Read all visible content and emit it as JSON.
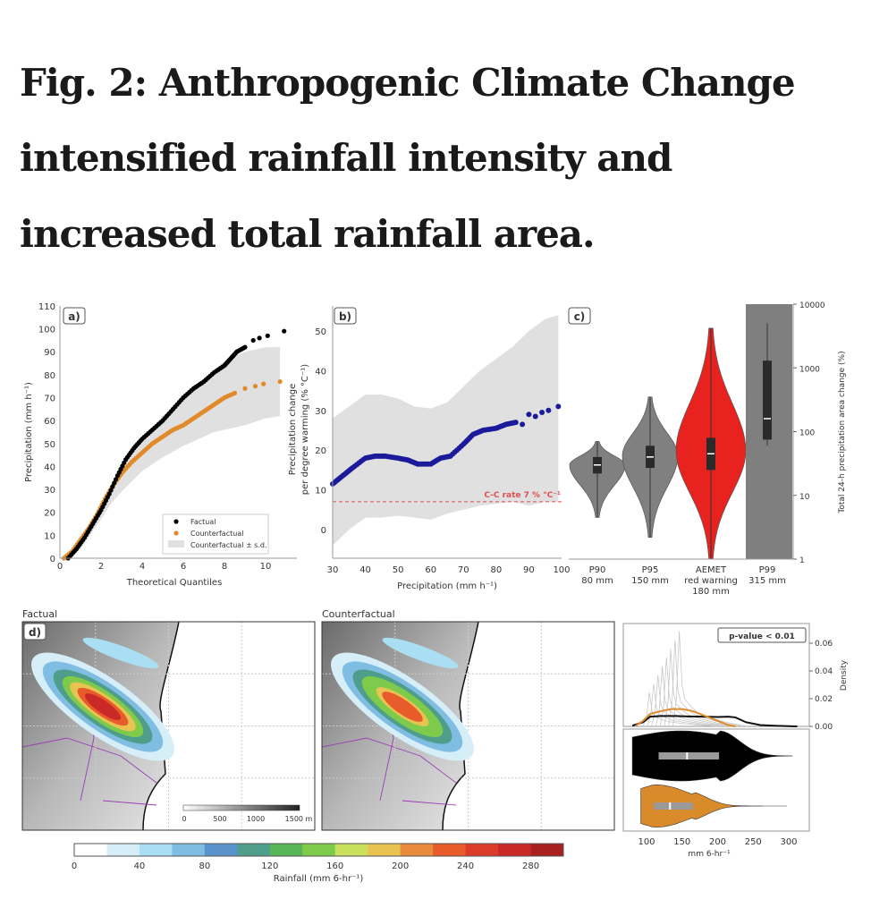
{
  "figure": {
    "title_lines": [
      "Fig. 2: Anthropogenic Climate Change",
      "intensified rainfall intensity and",
      "increased total rainfall area."
    ]
  },
  "chart_data": [
    {
      "panel": "a)",
      "type": "scatter",
      "xlabel": "Theoretical Quantiles",
      "ylabel": "Precipitation (mm h⁻¹)",
      "xlim": [
        0,
        11.3
      ],
      "ylim": [
        0,
        110
      ],
      "xticks": [
        0,
        2,
        4,
        6,
        8,
        10
      ],
      "yticks": [
        0,
        10,
        20,
        30,
        40,
        50,
        60,
        70,
        80,
        90,
        100,
        110
      ],
      "legend": {
        "position": "bottom-right",
        "entries": [
          "Factual",
          "Counterfactual",
          "Counterfactual ± s.d."
        ]
      },
      "series": [
        {
          "name": "Factual",
          "color": "#000000",
          "x": [
            0.4,
            0.8,
            1.2,
            1.6,
            2.0,
            2.4,
            2.8,
            3.2,
            3.6,
            4.0,
            4.5,
            5.0,
            5.5,
            6.0,
            6.5,
            7.0,
            7.5,
            8.0,
            8.3,
            8.6,
            9.0,
            9.4,
            9.7,
            10.1,
            10.9
          ],
          "y": [
            0,
            4,
            9,
            15,
            21,
            28,
            36,
            43,
            48,
            52,
            56,
            60,
            65,
            70,
            74,
            77,
            81,
            84,
            87,
            90,
            92,
            95,
            96,
            97,
            99
          ]
        },
        {
          "name": "Counterfactual",
          "color": "#e08a2a",
          "x": [
            0.2,
            0.6,
            1.0,
            1.4,
            1.8,
            2.2,
            2.6,
            3.0,
            3.5,
            4.0,
            4.5,
            5.0,
            5.5,
            6.0,
            6.5,
            7.0,
            7.5,
            8.0,
            8.5,
            9.0,
            9.5,
            9.9,
            10.7
          ],
          "y": [
            0,
            3,
            8,
            13,
            19,
            26,
            32,
            37,
            42,
            46,
            50,
            53,
            56,
            58,
            61,
            64,
            67,
            70,
            72,
            74,
            75,
            76,
            77
          ]
        },
        {
          "name": "Counterfactual ± s.d.",
          "color": "#e0e0e0",
          "x": [
            0,
            1,
            2,
            2.5,
            3,
            4,
            5,
            6,
            7,
            7.5,
            8,
            9,
            10,
            10.7
          ],
          "lower": [
            0,
            4,
            17,
            24,
            29,
            38,
            44,
            49,
            53,
            55,
            56,
            58,
            61,
            62
          ],
          "upper": [
            0,
            5,
            22,
            30,
            38,
            52,
            62,
            70,
            78,
            82,
            86,
            90,
            92,
            92
          ]
        }
      ]
    },
    {
      "panel": "b)",
      "type": "scatter",
      "xlabel": "Precipitation (mm h⁻¹)",
      "ylabel_lines": [
        "Precipitation change",
        "per degree warming (% °C⁻¹)"
      ],
      "xlim": [
        30,
        100
      ],
      "ylim": [
        -7,
        55
      ],
      "xticks": [
        30,
        40,
        50,
        60,
        70,
        80,
        90,
        100
      ],
      "yticks": [
        0,
        10,
        20,
        30,
        40,
        50
      ],
      "annotation": "C-C rate 7 % °C⁻¹",
      "reference_line": 7,
      "series": [
        {
          "name": "change",
          "color": "#1a1a9a",
          "x": [
            30,
            33,
            36,
            40,
            43,
            46,
            50,
            53,
            56,
            60,
            63,
            66,
            70,
            73,
            76,
            80,
            83,
            86,
            88,
            90,
            92,
            94,
            96,
            99
          ],
          "y": [
            11.5,
            13.5,
            15.5,
            18,
            18.5,
            18.5,
            18,
            17.5,
            16.5,
            16.5,
            18,
            18.5,
            21.5,
            24,
            25,
            25.5,
            26.5,
            27,
            26.5,
            29,
            28.5,
            29.5,
            30,
            31
          ]
        },
        {
          "name": "band",
          "color": "#e0e0e0",
          "x": [
            30,
            35,
            40,
            45,
            50,
            55,
            60,
            65,
            70,
            75,
            80,
            85,
            90,
            95,
            99
          ],
          "lower": [
            -4,
            0,
            3,
            3,
            3.5,
            3,
            2.5,
            4,
            5,
            6,
            6.5,
            7,
            6,
            7,
            7
          ],
          "upper": [
            28,
            31,
            34,
            34,
            33,
            31,
            30.5,
            32,
            36,
            40,
            43,
            46,
            50,
            53,
            54
          ]
        }
      ]
    },
    {
      "panel": "c)",
      "type": "violin",
      "ylabel": "Total 24-h precipitation area change (%)",
      "yscale": "log",
      "ylim": [
        1,
        10000
      ],
      "yticks": [
        "1",
        "10",
        "100",
        "1000",
        "10000"
      ],
      "categories": [
        {
          "lines": [
            "P90",
            "80 mm"
          ],
          "color": "#808080",
          "min": 4.5,
          "q1": 22,
          "median": 30,
          "q3": 40,
          "max": 70,
          "mode": 30
        },
        {
          "lines": [
            "P95",
            "150 mm"
          ],
          "color": "#808080",
          "min": 2.2,
          "q1": 27,
          "median": 40,
          "q3": 60,
          "max": 350,
          "mode": 42
        },
        {
          "lines": [
            "AEMET",
            "red warning",
            "180 mm"
          ],
          "color": "#e8231f",
          "min": 1,
          "q1": 25,
          "median": 45,
          "q3": 80,
          "max": 4200,
          "mode": 50
        },
        {
          "lines": [
            "P99",
            "315 mm"
          ],
          "color": "#7f7f7f",
          "min": 60,
          "q1": 75,
          "median": 160,
          "q3": 1300,
          "max": 5000,
          "full_bar": true
        }
      ]
    },
    {
      "panel": "d)",
      "type": "heatmap",
      "map_titles": [
        "Factual",
        "Counterfactual"
      ],
      "colorbar": {
        "label": "Rainfall (mm 6-hr⁻¹)",
        "ticks": [
          "0",
          "40",
          "80",
          "120",
          "160",
          "200",
          "240",
          "280"
        ],
        "range": [
          0,
          300
        ],
        "step": 20,
        "colors": [
          "#ffffff",
          "#d6eef8",
          "#aadff3",
          "#7fbde3",
          "#5a93cc",
          "#4f9e8c",
          "#58b658",
          "#7ecb4c",
          "#c9e05c",
          "#e8c352",
          "#e98b3c",
          "#e85c2b",
          "#da3b2a",
          "#c92a28",
          "#a82020"
        ]
      },
      "elevation_scale": {
        "ticks": [
          "0",
          "500",
          "1000",
          "1500 m"
        ]
      },
      "maxima": {
        "Factual": 280,
        "Counterfactual": 230
      }
    },
    {
      "panel": "d-right",
      "type": "area",
      "annotation": "p-value < 0.01",
      "xlabel": "mm 6-hr⁻¹",
      "ylabel": "Density",
      "xlim": [
        80,
        320
      ],
      "ylim": [
        0,
        0.075
      ],
      "xticks": [
        100,
        150,
        200,
        250,
        300
      ],
      "yticks": [
        "0.00",
        "0.02",
        "0.04",
        "0.06"
      ],
      "series": [
        {
          "name": "Factual",
          "color": "#111111",
          "x": [
            80,
            95,
            105,
            120,
            140,
            160,
            180,
            200,
            215,
            225,
            240,
            260,
            280,
            300,
            312
          ],
          "y": [
            0.0005,
            0.003,
            0.007,
            0.0075,
            0.0075,
            0.0072,
            0.007,
            0.0068,
            0.007,
            0.0065,
            0.003,
            0.001,
            0.0005,
            0.0002,
            0
          ]
        },
        {
          "name": "Counterfactual",
          "color": "#e08a2a",
          "x": [
            85,
            95,
            105,
            120,
            135,
            150,
            165,
            180,
            195,
            205,
            215,
            225
          ],
          "y": [
            0.0005,
            0.004,
            0.009,
            0.011,
            0.0125,
            0.0125,
            0.011,
            0.008,
            0.005,
            0.003,
            0.001,
            0
          ]
        },
        {
          "name": "Members",
          "color": "#c8c8c8",
          "x": [
            95,
            100,
            104,
            108,
            112,
            120,
            130,
            140,
            150,
            170,
            200
          ],
          "y": [
            0,
            0.02,
            0.07,
            0.03,
            0.02,
            0.015,
            0.01,
            0.008,
            0.006,
            0.003,
            0
          ]
        }
      ],
      "violins": [
        {
          "name": "Factual",
          "color": "#000000",
          "min": 80,
          "q1": 117,
          "median": 157,
          "q3": 202,
          "max": 305
        },
        {
          "name": "Counterfactual",
          "color": "#d98b2b",
          "min": 92,
          "q1": 110,
          "median": 133,
          "q3": 165,
          "max": 297
        }
      ]
    }
  ]
}
